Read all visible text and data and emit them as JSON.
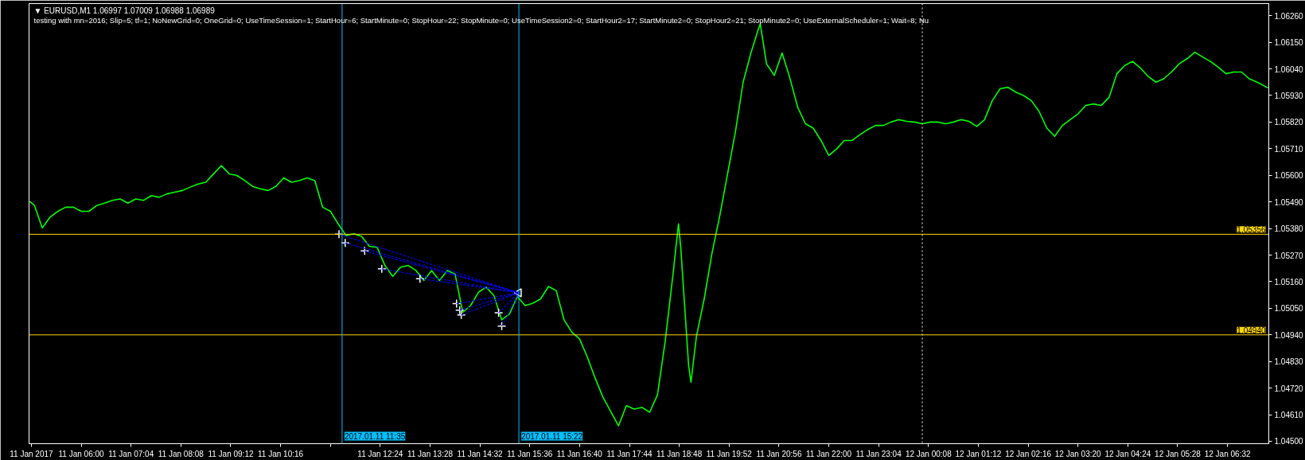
{
  "chart_data": {
    "type": "line",
    "title": "▼ EURUSD,M1 1.06997 1.07009 1.06988 1.06989",
    "subtitle": "testing with mn=2016; Slip=5; tf=1; NoNewGrid=0; OneGrid=0; UseTimeSession=1; StartHour=6; StartMinute=0; StopHour=22; StopMinute=0; UseTimeSession2=0; StartHour2=17; StartMinute2=0; StopHour2=21; StopMinute2=0; UseExternalScheduler=1; Wait=8; Nu",
    "xlim": [
      "2017-01-11T04:53",
      "2017-01-12T07:25"
    ],
    "ylim": [
      1.0449,
      1.0631
    ],
    "xticks": [
      {
        "value": "2017-01-11T04:56",
        "label": "11 Jan 2017"
      },
      {
        "value": "2017-01-11T06:00",
        "label": "11 Jan 06:00"
      },
      {
        "value": "2017-01-11T07:04",
        "label": "11 Jan 07:04"
      },
      {
        "value": "2017-01-11T08:08",
        "label": "11 Jan 08:08"
      },
      {
        "value": "2017-01-11T09:12",
        "label": "11 Jan 09:12"
      },
      {
        "value": "2017-01-11T10:16",
        "label": "11 Jan 10:16"
      },
      {
        "value": "2017-01-11T11:20",
        "label": null
      },
      {
        "value": "2017-01-11T12:24",
        "label": "11 Jan 12:24"
      },
      {
        "value": "2017-01-11T13:28",
        "label": "11 Jan 13:28"
      },
      {
        "value": "2017-01-11T14:32",
        "label": "11 Jan 14:32"
      },
      {
        "value": "2017-01-11T15:36",
        "label": "11 Jan 15:36"
      },
      {
        "value": "2017-01-11T16:40",
        "label": "11 Jan 16:40"
      },
      {
        "value": "2017-01-11T17:44",
        "label": "11 Jan 17:44"
      },
      {
        "value": "2017-01-11T18:48",
        "label": "11 Jan 18:48"
      },
      {
        "value": "2017-01-11T19:52",
        "label": "11 Jan 19:52"
      },
      {
        "value": "2017-01-11T20:56",
        "label": "11 Jan 20:56"
      },
      {
        "value": "2017-01-11T22:00",
        "label": "11 Jan 22:00"
      },
      {
        "value": "2017-01-11T23:04",
        "label": "11 Jan 23:04"
      },
      {
        "value": "2017-01-12T00:08",
        "label": "12 Jan 00:08"
      },
      {
        "value": "2017-01-12T01:12",
        "label": "12 Jan 01:12"
      },
      {
        "value": "2017-01-12T02:16",
        "label": "12 Jan 02:16"
      },
      {
        "value": "2017-01-12T03:20",
        "label": "12 Jan 03:20"
      },
      {
        "value": "2017-01-12T04:24",
        "label": "12 Jan 04:24"
      },
      {
        "value": "2017-01-12T05:28",
        "label": "12 Jan 05:28"
      },
      {
        "value": "2017-01-12T06:32",
        "label": "12 Jan 06:32"
      }
    ],
    "yticks": [
      {
        "value": 1.045,
        "label": "1.04500"
      },
      {
        "value": 1.0461,
        "label": "1.04610"
      },
      {
        "value": 1.0472,
        "label": "1.04720"
      },
      {
        "value": 1.0483,
        "label": "1.04830"
      },
      {
        "value": 1.0494,
        "label": "1.04940"
      },
      {
        "value": 1.0505,
        "label": "1.05050"
      },
      {
        "value": 1.0516,
        "label": "1.05160"
      },
      {
        "value": 1.0527,
        "label": "1.05270"
      },
      {
        "value": 1.0538,
        "label": "1.05380"
      },
      {
        "value": 1.0549,
        "label": "1.05490"
      },
      {
        "value": 1.056,
        "label": "1.05600"
      },
      {
        "value": 1.0571,
        "label": "1.05710"
      },
      {
        "value": 1.0582,
        "label": "1.05820"
      },
      {
        "value": 1.0593,
        "label": "1.05930"
      },
      {
        "value": 1.0604,
        "label": "1.06040"
      },
      {
        "value": 1.0615,
        "label": "1.06150"
      },
      {
        "value": 1.0626,
        "label": "1.06260"
      }
    ],
    "ref_lines": [
      {
        "axis": "y",
        "value": 1.05356,
        "label": "1.05356",
        "color": "#ffd700"
      },
      {
        "axis": "y",
        "value": 1.0494,
        "label": "1.04940",
        "color": "#ffd700"
      },
      {
        "axis": "x",
        "value": "2017-01-11T11:35",
        "label": "2017.01.11 11:35",
        "color": "#00bfff"
      },
      {
        "axis": "x",
        "value": "2017-01-11T15:22",
        "label": "2017.01.11 15:22",
        "color": "#00bfff"
      },
      {
        "axis": "x",
        "value": "2017-01-12T00:00",
        "color": "#ffffff",
        "line_style": "dotted"
      }
    ],
    "series": [
      {
        "color": "#00ff00",
        "x": [
          "2017-01-11T04:54",
          "2017-01-11T05:00",
          "2017-01-11T05:10",
          "2017-01-11T05:20",
          "2017-01-11T05:30",
          "2017-01-11T05:40",
          "2017-01-11T05:50",
          "2017-01-11T06:00",
          "2017-01-11T06:10",
          "2017-01-11T06:20",
          "2017-01-11T06:30",
          "2017-01-11T06:40",
          "2017-01-11T06:50",
          "2017-01-11T07:00",
          "2017-01-11T07:10",
          "2017-01-11T07:20",
          "2017-01-11T07:30",
          "2017-01-11T07:40",
          "2017-01-11T07:50",
          "2017-01-11T08:00",
          "2017-01-11T08:10",
          "2017-01-11T08:20",
          "2017-01-11T08:30",
          "2017-01-11T08:40",
          "2017-01-11T08:50",
          "2017-01-11T09:00",
          "2017-01-11T09:10",
          "2017-01-11T09:20",
          "2017-01-11T09:30",
          "2017-01-11T09:40",
          "2017-01-11T09:50",
          "2017-01-11T10:00",
          "2017-01-11T10:10",
          "2017-01-11T10:20",
          "2017-01-11T10:30",
          "2017-01-11T10:40",
          "2017-01-11T10:50",
          "2017-01-11T11:00",
          "2017-01-11T11:10",
          "2017-01-11T11:20",
          "2017-01-11T11:30",
          "2017-01-11T11:40",
          "2017-01-11T11:50",
          "2017-01-11T12:00",
          "2017-01-11T12:10",
          "2017-01-11T12:20",
          "2017-01-11T12:30",
          "2017-01-11T12:40",
          "2017-01-11T12:50",
          "2017-01-11T13:00",
          "2017-01-11T13:10",
          "2017-01-11T13:20",
          "2017-01-11T13:30",
          "2017-01-11T13:40",
          "2017-01-11T13:50",
          "2017-01-11T14:00",
          "2017-01-11T14:10",
          "2017-01-11T14:20",
          "2017-01-11T14:30",
          "2017-01-11T14:40",
          "2017-01-11T14:50",
          "2017-01-11T15:00",
          "2017-01-11T15:10",
          "2017-01-11T15:20",
          "2017-01-11T15:30",
          "2017-01-11T15:40",
          "2017-01-11T15:50",
          "2017-01-11T16:00",
          "2017-01-11T16:10",
          "2017-01-11T16:20",
          "2017-01-11T16:30",
          "2017-01-11T16:40",
          "2017-01-11T16:50",
          "2017-01-11T17:00",
          "2017-01-11T17:10",
          "2017-01-11T17:20",
          "2017-01-11T17:30",
          "2017-01-11T17:40",
          "2017-01-11T17:50",
          "2017-01-11T18:00",
          "2017-01-11T18:10",
          "2017-01-11T18:20",
          "2017-01-11T18:30",
          "2017-01-11T18:40",
          "2017-01-11T18:47",
          "2017-01-11T18:50",
          "2017-01-11T19:00",
          "2017-01-11T19:03",
          "2017-01-11T19:10",
          "2017-01-11T19:20",
          "2017-01-11T19:30",
          "2017-01-11T19:40",
          "2017-01-11T19:50",
          "2017-01-11T20:00",
          "2017-01-11T20:10",
          "2017-01-11T20:20",
          "2017-01-11T20:30",
          "2017-01-11T20:32",
          "2017-01-11T20:40",
          "2017-01-11T20:50",
          "2017-01-11T21:00",
          "2017-01-11T21:10",
          "2017-01-11T21:20",
          "2017-01-11T21:30",
          "2017-01-11T21:40",
          "2017-01-11T21:50",
          "2017-01-11T22:00",
          "2017-01-11T22:10",
          "2017-01-11T22:20",
          "2017-01-11T22:30",
          "2017-01-11T22:40",
          "2017-01-11T22:50",
          "2017-01-11T23:00",
          "2017-01-11T23:10",
          "2017-01-11T23:20",
          "2017-01-11T23:30",
          "2017-01-11T23:40",
          "2017-01-11T23:50",
          "2017-01-12T00:00",
          "2017-01-12T00:10",
          "2017-01-12T00:20",
          "2017-01-12T00:30",
          "2017-01-12T00:40",
          "2017-01-12T00:50",
          "2017-01-12T01:00",
          "2017-01-12T01:10",
          "2017-01-12T01:20",
          "2017-01-12T01:30",
          "2017-01-12T01:40",
          "2017-01-12T01:50",
          "2017-01-12T02:00",
          "2017-01-12T02:10",
          "2017-01-12T02:20",
          "2017-01-12T02:30",
          "2017-01-12T02:40",
          "2017-01-12T02:50",
          "2017-01-12T03:00",
          "2017-01-12T03:10",
          "2017-01-12T03:20",
          "2017-01-12T03:30",
          "2017-01-12T03:40",
          "2017-01-12T03:50",
          "2017-01-12T04:00",
          "2017-01-12T04:10",
          "2017-01-12T04:20",
          "2017-01-12T04:30",
          "2017-01-12T04:40",
          "2017-01-12T04:50",
          "2017-01-12T05:00",
          "2017-01-12T05:10",
          "2017-01-12T05:20",
          "2017-01-12T05:30",
          "2017-01-12T05:40",
          "2017-01-12T05:50",
          "2017-01-12T06:00",
          "2017-01-12T06:10",
          "2017-01-12T06:20",
          "2017-01-12T06:30",
          "2017-01-12T06:40",
          "2017-01-12T06:50",
          "2017-01-12T07:00",
          "2017-01-12T07:10",
          "2017-01-12T07:20",
          "2017-01-12T07:24"
        ],
        "values": [
          1.05492,
          1.05475,
          1.05382,
          1.05427,
          1.05451,
          1.05468,
          1.05468,
          1.05451,
          1.05451,
          1.05475,
          1.05485,
          1.05496,
          1.05502,
          1.05485,
          1.05502,
          1.05496,
          1.05516,
          1.05509,
          1.05523,
          1.0553,
          1.05537,
          1.05551,
          1.05564,
          1.05571,
          1.05606,
          1.0564,
          1.05606,
          1.05599,
          1.05578,
          1.05554,
          1.05544,
          1.05537,
          1.05554,
          1.05589,
          1.05571,
          1.05578,
          1.05589,
          1.05578,
          1.05468,
          1.05451,
          1.05399,
          1.05351,
          1.05358,
          1.05347,
          1.05306,
          1.05302,
          1.05227,
          1.05182,
          1.0522,
          1.05227,
          1.05206,
          1.05165,
          1.05206,
          1.05165,
          1.05206,
          1.05192,
          1.05033,
          1.05061,
          1.05116,
          1.05137,
          1.05102,
          1.05002,
          1.05027,
          1.05099,
          1.05061,
          1.05071,
          1.05089,
          1.0514,
          1.05123,
          1.05002,
          1.04951,
          1.04923,
          1.04847,
          1.04761,
          1.04682,
          1.04623,
          1.04564,
          1.04647,
          1.04633,
          1.0464,
          1.0462,
          1.04692,
          1.04916,
          1.05192,
          1.05399,
          1.05296,
          1.04813,
          1.04744,
          1.04933,
          1.05089,
          1.05278,
          1.05433,
          1.05606,
          1.05778,
          1.05985,
          1.06106,
          1.06209,
          1.06226,
          1.06061,
          1.06013,
          1.06106,
          1.06002,
          1.05882,
          1.05813,
          1.05795,
          1.05744,
          1.05682,
          1.05709,
          1.05744,
          1.05744,
          1.05768,
          1.05789,
          1.05806,
          1.05806,
          1.0582,
          1.0583,
          1.05823,
          1.0582,
          1.05813,
          1.0582,
          1.0582,
          1.05813,
          1.0582,
          1.0583,
          1.05823,
          1.05802,
          1.0583,
          1.05909,
          1.05958,
          1.05964,
          1.05944,
          1.0593,
          1.05909,
          1.05864,
          1.05795,
          1.05761,
          1.05806,
          1.0583,
          1.05854,
          1.05889,
          1.05895,
          1.05889,
          1.05923,
          1.0602,
          1.06054,
          1.06071,
          1.06044,
          1.06009,
          1.05985,
          1.05999,
          1.06027,
          1.06061,
          1.06082,
          1.06109,
          1.06089,
          1.06071,
          1.06047,
          1.0602,
          1.06027,
          1.06027,
          1.05999,
          1.05985,
          1.05968,
          1.05961
        ]
      },
      {
        "type": "scatter",
        "color": "#ffffff",
        "marker": "cross",
        "x": [
          "2017-01-11T11:31",
          "2017-01-11T11:39",
          "2017-01-11T12:04",
          "2017-01-11T12:26",
          "2017-01-11T13:15",
          "2017-01-11T14:02",
          "2017-01-11T14:06",
          "2017-01-11T14:08",
          "2017-01-11T14:56",
          "2017-01-11T15:00"
        ],
        "values": [
          1.05356,
          1.0532,
          1.05287,
          1.05213,
          1.05172,
          1.05069,
          1.05042,
          1.05022,
          1.05031,
          1.04976
        ]
      },
      {
        "type": "scatter",
        "color": "#ffffff",
        "marker": "triangle",
        "x": [
          "2017-01-11T15:22"
        ],
        "values": [
          1.05114
        ]
      },
      {
        "type": "line",
        "color": "#0000ff",
        "line_style": "dashed",
        "x": [
          "2017-01-11T11:31",
          "2017-01-11T15:22"
        ],
        "values": [
          1.05356,
          1.05114
        ]
      },
      {
        "type": "line",
        "color": "#0000ff",
        "line_style": "dashed",
        "x": [
          "2017-01-11T11:39",
          "2017-01-11T15:22"
        ],
        "values": [
          1.0532,
          1.05114
        ]
      },
      {
        "type": "line",
        "color": "#0000ff",
        "line_style": "dashed",
        "x": [
          "2017-01-11T12:04",
          "2017-01-11T15:22"
        ],
        "values": [
          1.05287,
          1.05114
        ]
      },
      {
        "type": "line",
        "color": "#0000ff",
        "line_style": "dashed",
        "x": [
          "2017-01-11T12:26",
          "2017-01-11T15:22"
        ],
        "values": [
          1.05213,
          1.05114
        ]
      },
      {
        "type": "line",
        "color": "#0000ff",
        "line_style": "dashed",
        "x": [
          "2017-01-11T13:15",
          "2017-01-11T15:22"
        ],
        "values": [
          1.05172,
          1.05114
        ]
      },
      {
        "type": "line",
        "color": "#0000ff",
        "line_style": "dashed",
        "x": [
          "2017-01-11T14:02",
          "2017-01-11T15:22"
        ],
        "values": [
          1.05069,
          1.05114
        ]
      },
      {
        "type": "line",
        "color": "#0000ff",
        "line_style": "dashed",
        "x": [
          "2017-01-11T14:06",
          "2017-01-11T15:22"
        ],
        "values": [
          1.05042,
          1.05114
        ]
      },
      {
        "type": "line",
        "color": "#0000ff",
        "line_style": "dashed",
        "x": [
          "2017-01-11T14:08",
          "2017-01-11T15:22"
        ],
        "values": [
          1.05022,
          1.05114
        ]
      },
      {
        "type": "line",
        "color": "#0000ff",
        "line_style": "dashed",
        "x": [
          "2017-01-11T14:56",
          "2017-01-11T15:22"
        ],
        "values": [
          1.05031,
          1.05114
        ]
      },
      {
        "type": "line",
        "color": "#0000ff",
        "line_style": "dashed",
        "x": [
          "2017-01-11T15:00",
          "2017-01-11T15:22"
        ],
        "values": [
          1.04976,
          1.05114
        ]
      }
    ]
  }
}
